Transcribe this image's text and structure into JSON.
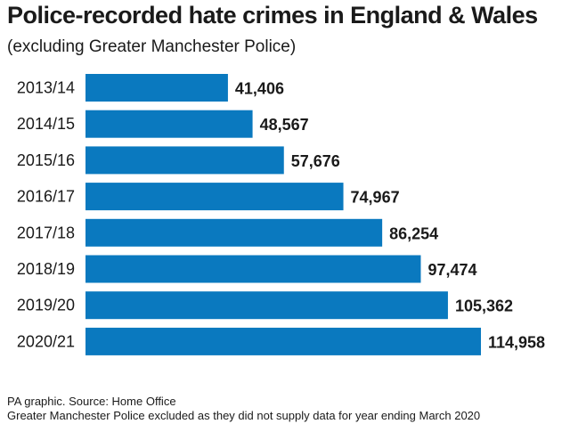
{
  "header": {
    "title": "Police-recorded hate crimes in England & Wales",
    "subtitle": "(excluding Greater Manchester Police)"
  },
  "footer": {
    "source": "PA graphic. Source: Home Office",
    "note": "Greater Manchester Police excluded as they did not supply data for year ending March 2020"
  },
  "colors": {
    "bar": "#0a79bf"
  },
  "chart_data": {
    "type": "bar",
    "orientation": "horizontal",
    "title": "Police-recorded hate crimes in England & Wales",
    "subtitle": "(excluding Greater Manchester Police)",
    "categories": [
      "2013/14",
      "2014/15",
      "2015/16",
      "2016/17",
      "2017/18",
      "2018/19",
      "2019/20",
      "2020/21"
    ],
    "values": [
      41406,
      48567,
      57676,
      74967,
      86254,
      97474,
      105362,
      114958
    ],
    "value_labels": [
      "41,406",
      "48,567",
      "57,676",
      "74,967",
      "86,254",
      "97,474",
      "105,362",
      "114,958"
    ],
    "xlim": [
      0,
      114958
    ],
    "grid": false,
    "legend": "none"
  }
}
